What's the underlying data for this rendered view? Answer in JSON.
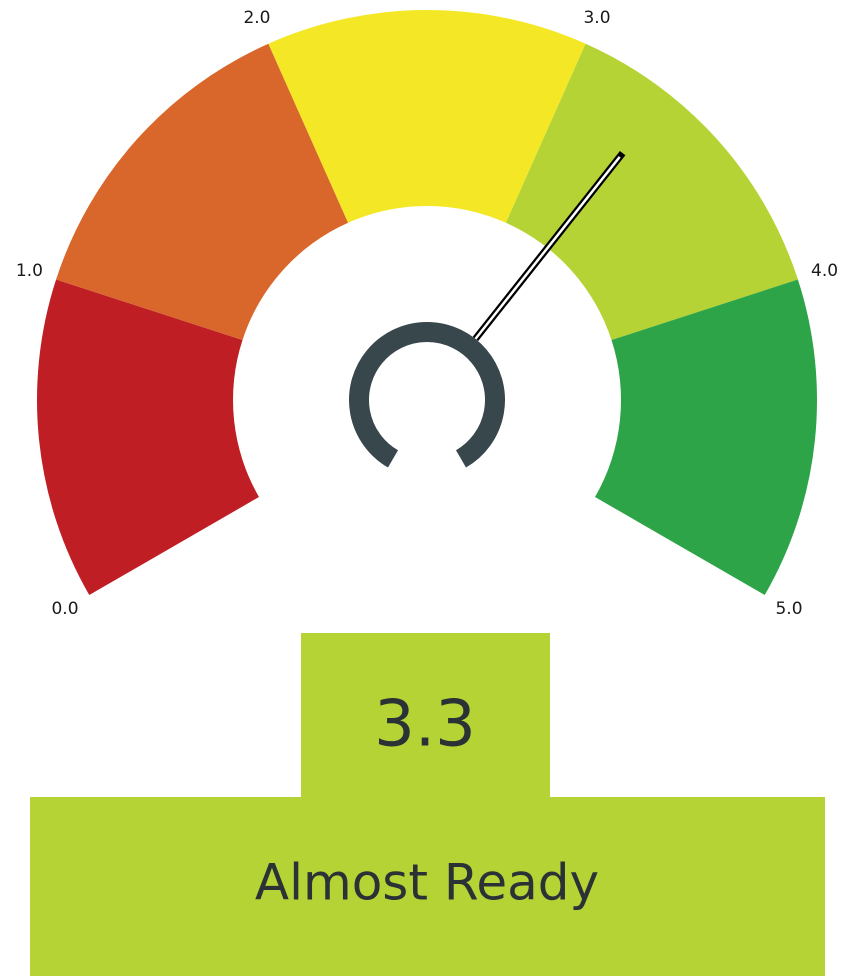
{
  "chart_data": {
    "type": "gauge",
    "lim": [
      0,
      5
    ],
    "ticks": [
      {
        "value": 0,
        "label": "0.0"
      },
      {
        "value": 1,
        "label": "1.0"
      },
      {
        "value": 2,
        "label": "2.0"
      },
      {
        "value": 3,
        "label": "3.0"
      },
      {
        "value": 4,
        "label": "4.0"
      },
      {
        "value": 5,
        "label": "5.0"
      }
    ],
    "colors": [
      "#be1e24",
      "#d9662a",
      "#f4e826",
      "#b5d334",
      "#2ea448"
    ],
    "value": 3.3,
    "label": "Almost Ready",
    "box_color": "#b5d334"
  }
}
